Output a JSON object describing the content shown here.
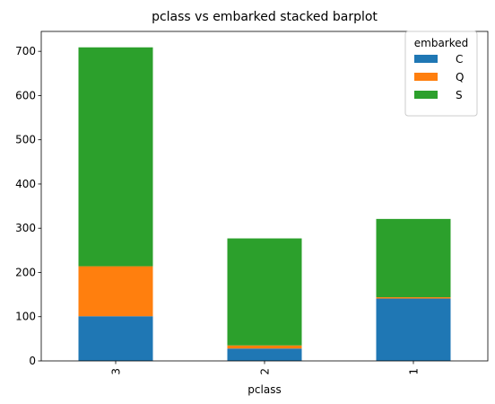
{
  "chart_data": {
    "type": "bar",
    "stacked": true,
    "title": "pclass vs embarked stacked barplot",
    "xlabel": "pclass",
    "ylabel": "",
    "categories": [
      "3",
      "2",
      "1"
    ],
    "series": [
      {
        "name": "C",
        "color": "#1f77b4",
        "values": [
          101,
          28,
          141
        ]
      },
      {
        "name": "Q",
        "color": "#ff7f0e",
        "values": [
          113,
          7,
          3
        ]
      },
      {
        "name": "S",
        "color": "#2ca02c",
        "values": [
          495,
          242,
          177
        ]
      }
    ],
    "ylim": [
      0,
      745
    ],
    "yticks": [
      0,
      100,
      200,
      300,
      400,
      500,
      600,
      700
    ],
    "grid": false,
    "legend": {
      "title": "embarked",
      "placement": "top-right"
    }
  }
}
